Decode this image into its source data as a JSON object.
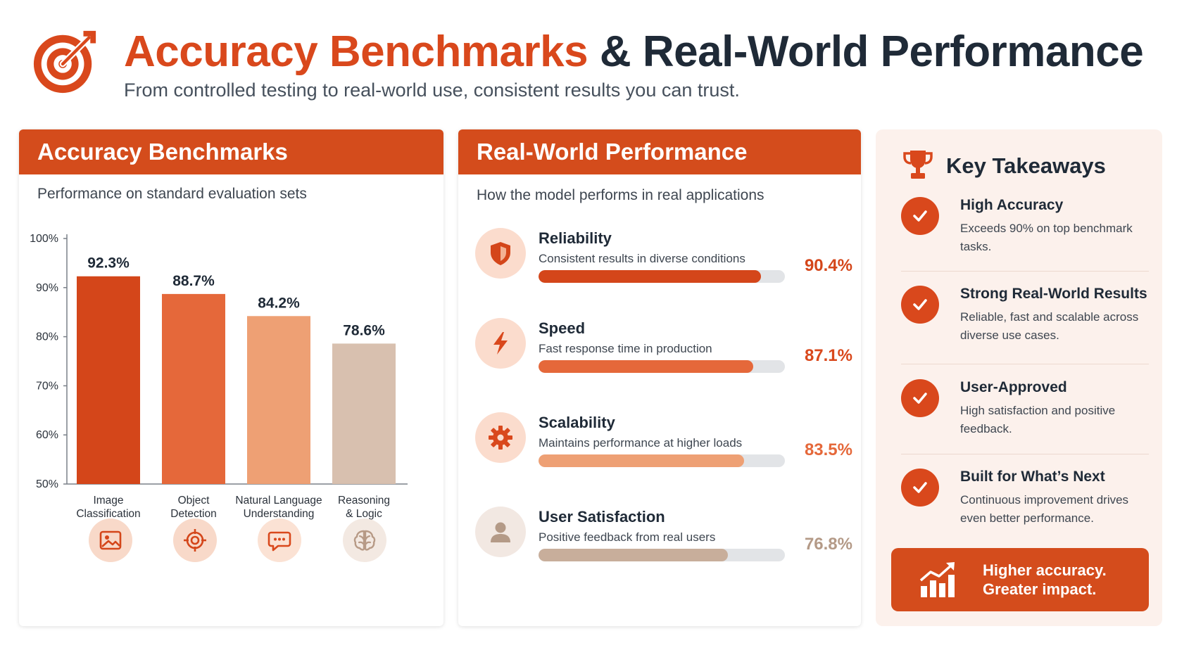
{
  "header": {
    "title_part1": "Accuracy Benchmarks",
    "title_part2": "& Real-World Performance",
    "subtitle": "From controlled testing to real-world use, consistent results you can trust.",
    "logo_icon": "target-arrow-icon"
  },
  "colors": {
    "accent": "#d9481c",
    "bar_colors": [
      "#d4461a",
      "#e5683a",
      "#eea074",
      "#d8c0af"
    ]
  },
  "benchmarks": {
    "heading": "Accuracy Benchmarks",
    "subheading": "Performance on standard evaluation sets",
    "category_icons": [
      "image-icon",
      "target-icon",
      "chat-icon",
      "brain-icon"
    ]
  },
  "chart_data": {
    "type": "bar",
    "categories": [
      "Image Classification",
      "Object Detection",
      "Natural Language Understanding",
      "Reasoning & Logic"
    ],
    "category_lines": [
      [
        "Image",
        "Classification"
      ],
      [
        "Object",
        "Detection"
      ],
      [
        "Natural Language",
        "Understanding"
      ],
      [
        "Reasoning",
        "& Logic"
      ]
    ],
    "values": [
      92.3,
      88.7,
      84.2,
      78.6
    ],
    "value_labels": [
      "92.3%",
      "88.7%",
      "84.2%",
      "78.6%"
    ],
    "yticks": [
      "100%",
      "90%",
      "80%",
      "70%",
      "60%",
      "50%"
    ],
    "ylim": [
      50,
      100
    ],
    "grid": false,
    "title": "",
    "xlabel": "",
    "ylabel": ""
  },
  "realworld": {
    "heading": "Real-World Performance",
    "subheading": "How the model performs in real applications",
    "items": [
      {
        "title": "Reliability",
        "desc": "Consistent results in diverse conditions",
        "value": 90.4,
        "label": "90.4%",
        "icon": "shield-icon",
        "color": "#d4461a",
        "text_color": "#d4461a"
      },
      {
        "title": "Speed",
        "desc": "Fast response time in production",
        "value": 87.1,
        "label": "87.1%",
        "icon": "lightning-icon",
        "color": "#e5683a",
        "text_color": "#d9481c"
      },
      {
        "title": "Scalability",
        "desc": "Maintains performance at higher loads",
        "value": 83.5,
        "label": "83.5%",
        "icon": "gear-icon",
        "color": "#eea074",
        "text_color": "#e5683a"
      },
      {
        "title": "User Satisfaction",
        "desc": "Positive feedback from real users",
        "value": 76.8,
        "label": "76.8%",
        "icon": "user-icon",
        "color": "#c8ae9b",
        "text_color": "#b49a87"
      }
    ]
  },
  "takeaways": {
    "heading": "Key Takeaways",
    "heading_icon": "trophy-icon",
    "items": [
      {
        "title": "High Accuracy",
        "desc": "Exceeds 90% on top benchmark tasks."
      },
      {
        "title": "Strong Real-World Results",
        "desc": "Reliable, fast and scalable across diverse use cases."
      },
      {
        "title": "User-Approved",
        "desc": "High satisfaction and positive feedback."
      },
      {
        "title": "Built for What’s Next",
        "desc": "Continuous improvement drives even better performance."
      }
    ],
    "banner_line1": "Higher accuracy.",
    "banner_line2": "Greater impact.",
    "banner_icon": "growth-chart-icon"
  }
}
